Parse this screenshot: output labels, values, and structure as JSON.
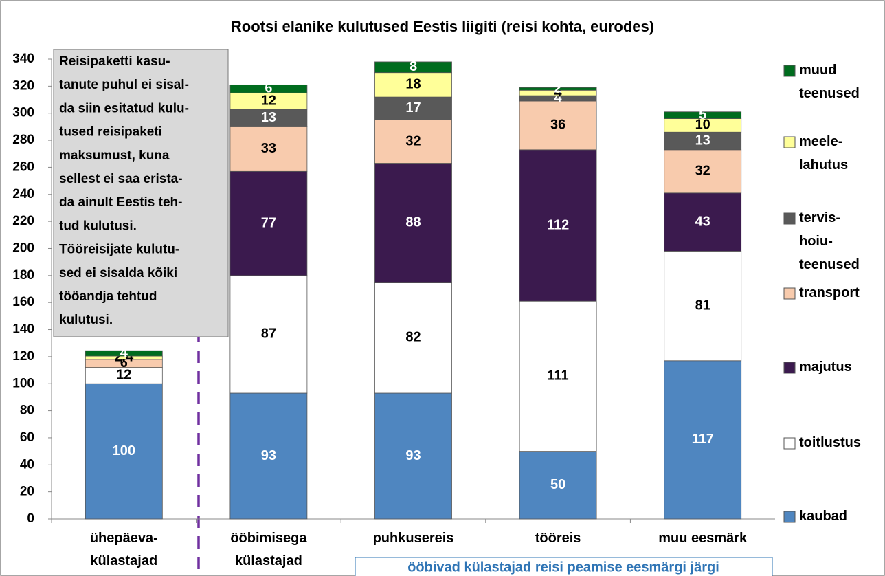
{
  "chart_data": {
    "type": "stacked_bar",
    "title": "Rootsi elanike kulutused Eestis liigiti (reisi kohta, eurodes)",
    "categories": [
      "ühepäeva-\nkülastajad",
      "ööbimisega\nkülastajad",
      "puhkusereis",
      "tööreis",
      "muu eesmärk"
    ],
    "series": [
      {
        "name": "kaubad",
        "color": "#4f86c0",
        "values": [
          100,
          93,
          93,
          50,
          117
        ]
      },
      {
        "name": "toitlustus",
        "color": "#ffffff",
        "values": [
          12,
          87,
          82,
          111,
          81
        ]
      },
      {
        "name": "majutus",
        "color": "#3b1a4e",
        "values": [
          null,
          77,
          88,
          112,
          43
        ]
      },
      {
        "name": "transport",
        "color": "#f8cbad",
        "values": [
          6,
          33,
          32,
          36,
          32
        ]
      },
      {
        "name": "tervis-\nhoiu-\nteenused",
        "color": "#595959",
        "values": [
          null,
          13,
          17,
          4,
          13
        ]
      },
      {
        "name": "meele-\nlahutus",
        "color": "#ffff99",
        "values": [
          2.4,
          12,
          18,
          4,
          10
        ]
      },
      {
        "name": "muud\nteenused",
        "color": "#006c1e",
        "values": [
          4,
          6,
          8,
          2,
          5
        ]
      }
    ],
    "ylim": [
      0,
      340
    ],
    "yticks": [
      0,
      20,
      40,
      60,
      80,
      100,
      120,
      140,
      160,
      180,
      200,
      220,
      240,
      260,
      280,
      300,
      320,
      340
    ],
    "annotations": [
      "Reisipaketti kasu-\ntanute puhul ei sisal-\nda siin esitatud kulu-\ntused reisipaketi\nmaksumust, kuna\nsellest ei saa erista-\nda ainult Eestis teh-\ntud kulutusi.\nTööreisijate kulutu-\nsed ei sisalda kõiki\ntööandja tehtud\nkulutusi.",
      "ööbivad külastajad reisi peamise eesmärgi järgi"
    ]
  }
}
